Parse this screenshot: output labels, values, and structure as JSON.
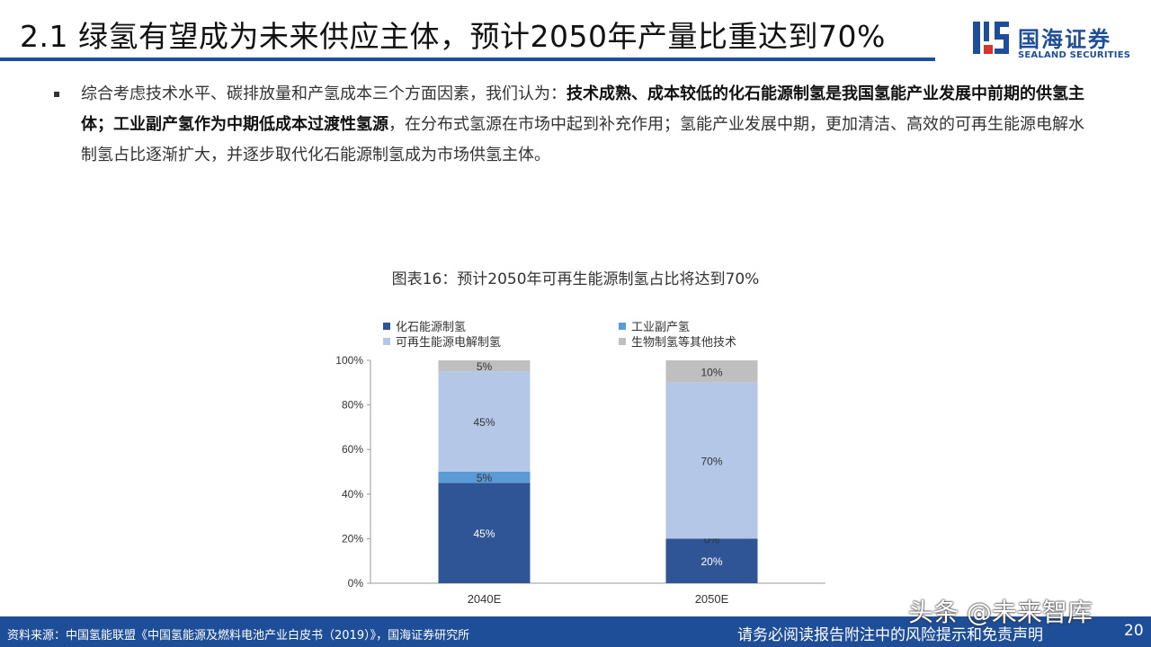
{
  "header": {
    "title": "2.1 绿氢有望成为未来供应主体，预计2050年产量比重达到70%",
    "logo_cn": "国海证券",
    "logo_en": "SEALAND SECURITIES"
  },
  "body": {
    "p1": "综合考虑技术水平、碳排放量和产氢成本三个方面因素，我们认为：",
    "p2_bold": "技术成熟、成本较低的化石能源制氢是我国氢能产业发展中前期的供氢主体；工业副产氢作为中期低成本过渡性氢源",
    "p3": "，在分布式氢源在市场中起到补充作用；氢能产业发展中期，更加清洁、高效的可再生能源电解水制氢占比逐渐扩大，并逐步取代化石能源制氢成为市场供氢主体。"
  },
  "chart_title": "图表16：预计2050年可再生能源制氢占比将达到70%",
  "chart_data": {
    "type": "bar",
    "stacked": true,
    "categories": [
      "2040E",
      "2050E"
    ],
    "series": [
      {
        "name": "化石能源制氢",
        "values": [
          45,
          20
        ],
        "labels": [
          "45%",
          "20%"
        ],
        "color": "#2f5597",
        "label_color": "#ffffff"
      },
      {
        "name": "工业副产氢",
        "values": [
          5,
          0
        ],
        "labels": [
          "5%",
          "0%"
        ],
        "color": "#5b9bd5",
        "label_color": "#333333"
      },
      {
        "name": "可再生能源电解制氢",
        "values": [
          45,
          70
        ],
        "labels": [
          "45%",
          "70%"
        ],
        "color": "#b4c7e7",
        "label_color": "#333333"
      },
      {
        "name": "生物制氢等其他技术",
        "values": [
          5,
          10
        ],
        "labels": [
          "5%",
          "10%"
        ],
        "color": "#bfbfbf",
        "label_color": "#333333"
      }
    ],
    "ylim": [
      0,
      100
    ],
    "yticks": [
      "0%",
      "20%",
      "40%",
      "60%",
      "80%",
      "100%"
    ],
    "legend_position": "top",
    "grid": false
  },
  "footer": {
    "source": "资料来源：中国氢能联盟《中国氢能源及燃料电池产业白皮书（2019）》，国海证券研究所",
    "disclaimer": "请务必阅读报告附注中的风险提示和免责声明",
    "page": "20",
    "watermark": "头条 @未来智库"
  }
}
